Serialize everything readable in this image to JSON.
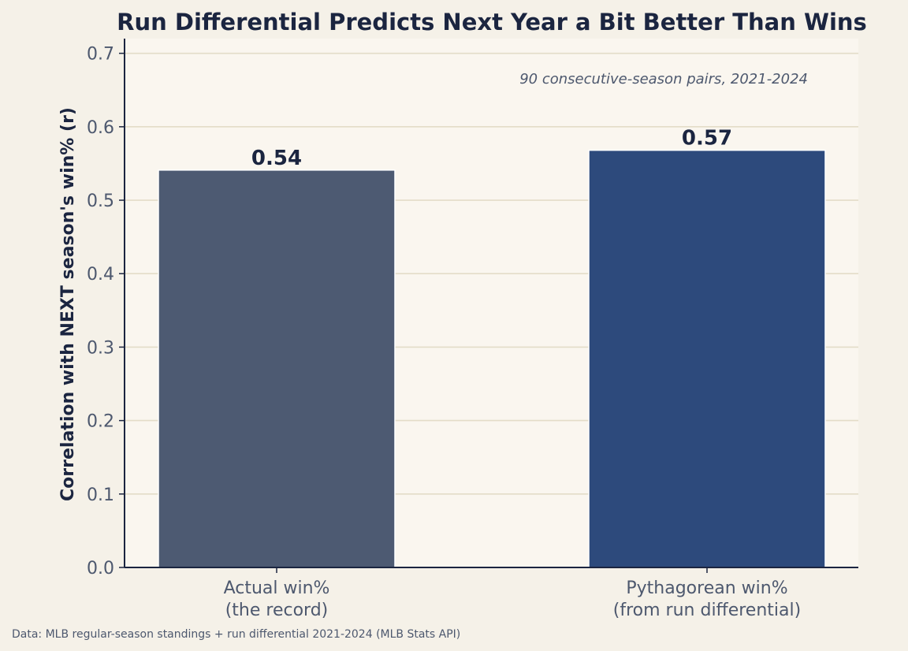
{
  "chart_data": {
    "type": "bar",
    "title": "Run Differential Predicts Next Year a Bit Better Than Wins",
    "ylabel": "Correlation with NEXT season's win% (r)",
    "xlabel": "",
    "categories": [
      [
        "Actual win%",
        "(the record)"
      ],
      [
        "Pythagorean win%",
        "(from run differential)"
      ]
    ],
    "values": [
      0.541,
      0.568
    ],
    "value_labels": [
      "0.54",
      "0.57"
    ],
    "bar_colors": [
      "#4d5a72",
      "#2d4a7c"
    ],
    "ylim": [
      0,
      0.72
    ],
    "yticks": [
      0.0,
      0.1,
      0.2,
      0.3,
      0.4,
      0.5,
      0.6,
      0.7
    ],
    "ytick_labels": [
      "0.0",
      "0.1",
      "0.2",
      "0.3",
      "0.4",
      "0.5",
      "0.6",
      "0.7"
    ],
    "grid": "horizontal",
    "annotation": "90 consecutive-season pairs, 2021-2024",
    "source": "Data: MLB regular-season standings + run differential 2021-2024 (MLB Stats API)"
  },
  "colors": {
    "figure_background": "#f5f1e8",
    "plot_background": "#faf6ef",
    "grid": "#e3dcc8",
    "axis": "#1b2540",
    "text_dark": "#1b2540",
    "text_muted": "#4d586e"
  }
}
